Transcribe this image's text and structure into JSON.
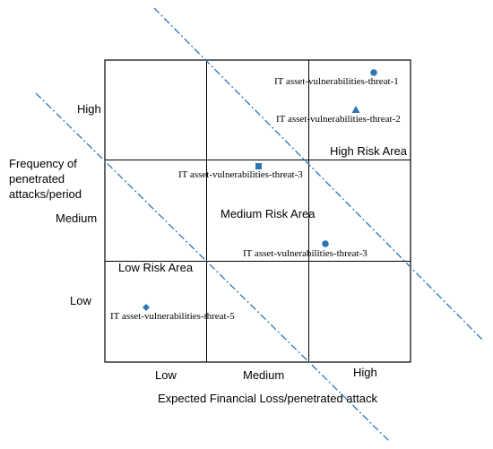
{
  "diagram": {
    "y_axis_title": [
      "Frequency of",
      "penetrated",
      "attacks/period"
    ],
    "x_axis_title": "Expected Financial Loss/penetrated attack",
    "y_levels": [
      "High",
      "Medium",
      "Low"
    ],
    "x_levels": [
      "Low",
      "Medium",
      "High"
    ],
    "zones": {
      "high": "High Risk Area",
      "medium": "Medium Risk Area",
      "low": "Low Risk Area"
    },
    "points": [
      {
        "label": "IT asset-vulnerabilities-threat-1",
        "marker": "circle"
      },
      {
        "label": "IT asset-vulnerabilities-threat-2",
        "marker": "triangle"
      },
      {
        "label": "IT asset-vulnerabilities-threat-3",
        "marker": "square"
      },
      {
        "label": "IT asset-vulnerabilities-threat-3",
        "marker": "circle"
      },
      {
        "label": "IT asset-vulnerabilities-threat-5",
        "marker": "diamond"
      }
    ],
    "colors": {
      "grid": "#000000",
      "boundary_lines": "#2E75B6",
      "markers": "#2E75B6",
      "text": "#000000"
    }
  }
}
